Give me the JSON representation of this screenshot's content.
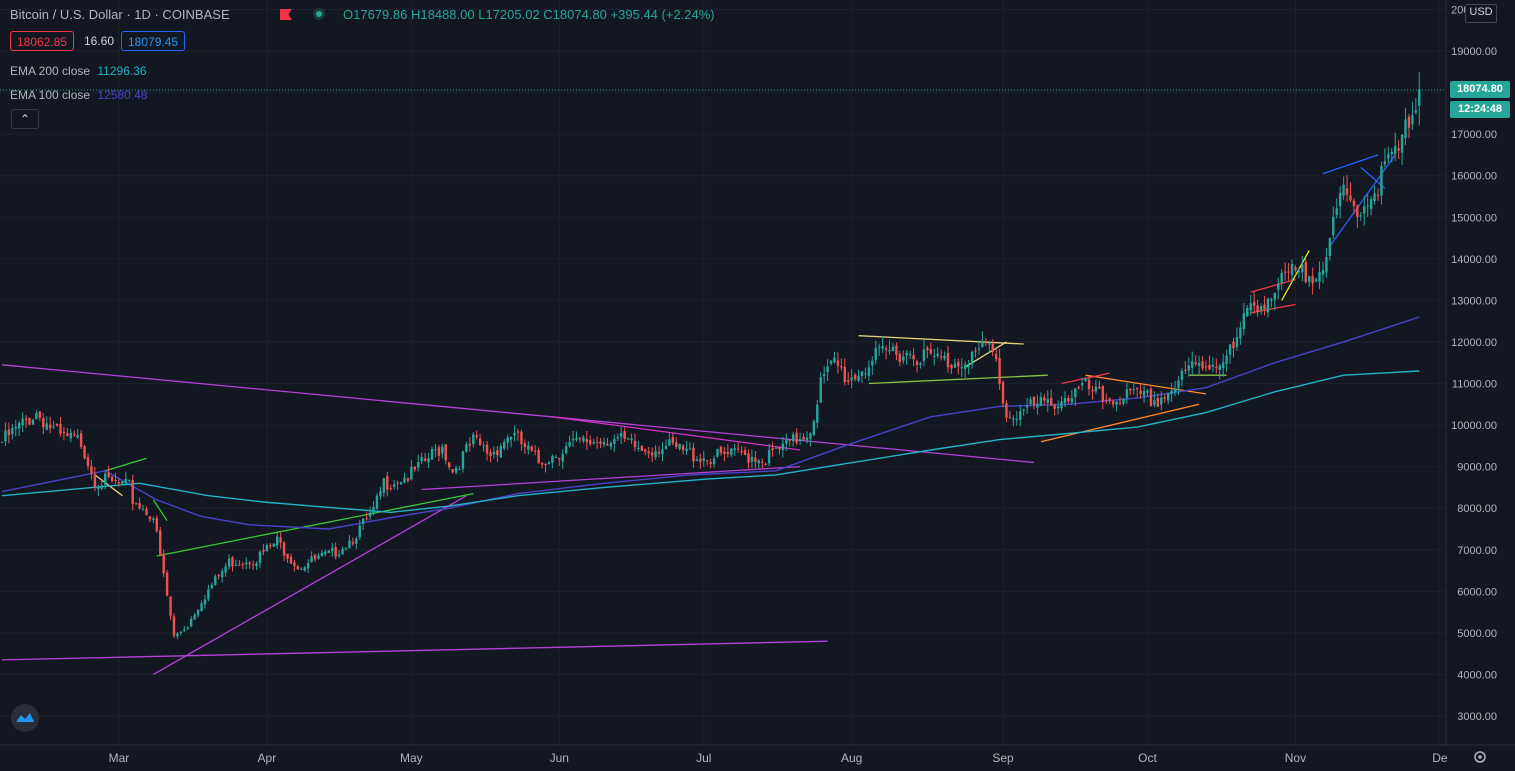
{
  "header": {
    "symbol": "Bitcoin / U.S. Dollar · 1D · COINBASE",
    "open": "O17679.86",
    "high": "H18488.00",
    "low": "L17205.02",
    "close": "C18074.80",
    "change": "+395.44 (+2.24%)"
  },
  "quote": {
    "bid": "18062.85",
    "spread": "16.60",
    "ask": "18079.45"
  },
  "indicators": [
    {
      "label": "EMA 200 close",
      "value": "11296.36",
      "color": "#22b3c6"
    },
    {
      "label": "EMA 100 close",
      "value": "12580.48",
      "color": "#4a43c8"
    }
  ],
  "price_axis": {
    "currency": "USD",
    "last_price": "18074.80",
    "countdown": "12:24:48"
  },
  "colors": {
    "up": "#26a69a",
    "down": "#ef5350",
    "background": "#131722",
    "grid": "#1e222d"
  },
  "chart_data": {
    "type": "candlestick",
    "x_ticks": [
      "Mar",
      "Apr",
      "May",
      "Jun",
      "Jul",
      "Aug",
      "Sep",
      "Oct",
      "Nov",
      "De"
    ],
    "y_ticks": [
      "3000.00",
      "4000.00",
      "5000.00",
      "6000.00",
      "7000.00",
      "8000.00",
      "9000.00",
      "10000.00",
      "11000.00",
      "12000.00",
      "13000.00",
      "14000.00",
      "15000.00",
      "16000.00",
      "17000.00",
      "18000.00",
      "19000.00",
      "20000.00"
    ],
    "ylim": [
      2400,
      20200
    ],
    "close_anchors": [
      [
        0,
        9600
      ],
      [
        10,
        10300
      ],
      [
        17,
        9700
      ],
      [
        23,
        9600
      ],
      [
        27,
        8700
      ],
      [
        37,
        8500
      ],
      [
        38,
        8200
      ],
      [
        44,
        7800
      ],
      [
        49,
        5400
      ],
      [
        50,
        4900
      ],
      [
        54,
        5200
      ],
      [
        58,
        5800
      ],
      [
        66,
        6700
      ],
      [
        74,
        6800
      ],
      [
        80,
        7200
      ],
      [
        86,
        6600
      ],
      [
        96,
        6900
      ],
      [
        102,
        7300
      ],
      [
        108,
        7900
      ],
      [
        111,
        8600
      ],
      [
        119,
        8800
      ],
      [
        124,
        9200
      ],
      [
        128,
        9500
      ],
      [
        131,
        8900
      ],
      [
        137,
        9600
      ],
      [
        142,
        9300
      ],
      [
        148,
        9800
      ],
      [
        156,
        9100
      ],
      [
        165,
        9500
      ],
      [
        177,
        9700
      ],
      [
        186,
        9400
      ],
      [
        192,
        9500
      ],
      [
        205,
        9200
      ],
      [
        215,
        9300
      ],
      [
        222,
        9200
      ],
      [
        230,
        9600
      ],
      [
        235,
        9900
      ],
      [
        238,
        11000
      ],
      [
        242,
        11500
      ],
      [
        246,
        11100
      ],
      [
        254,
        11600
      ],
      [
        259,
        11800
      ],
      [
        266,
        11700
      ],
      [
        276,
        11500
      ],
      [
        283,
        11700
      ],
      [
        287,
        11900
      ],
      [
        289,
        11500
      ],
      [
        292,
        10200
      ],
      [
        298,
        10400
      ],
      [
        304,
        10500
      ],
      [
        310,
        10700
      ],
      [
        315,
        10900
      ],
      [
        320,
        10600
      ],
      [
        326,
        10700
      ],
      [
        336,
        10600
      ],
      [
        342,
        11000
      ],
      [
        346,
        11400
      ],
      [
        352,
        11500
      ],
      [
        358,
        11800
      ],
      [
        363,
        12900
      ],
      [
        369,
        13100
      ],
      [
        374,
        13600
      ],
      [
        380,
        13600
      ],
      [
        385,
        14100
      ],
      [
        390,
        15600
      ],
      [
        393,
        15200
      ],
      [
        398,
        15500
      ],
      [
        403,
        16300
      ],
      [
        407,
        16700
      ],
      [
        410,
        17700
      ],
      [
        412,
        18074.8
      ]
    ],
    "ema_200": [
      [
        0,
        8300
      ],
      [
        40,
        8600
      ],
      [
        60,
        8300
      ],
      [
        76,
        8150
      ],
      [
        95,
        8020
      ],
      [
        113,
        7900
      ],
      [
        130,
        8050
      ],
      [
        150,
        8300
      ],
      [
        175,
        8500
      ],
      [
        205,
        8700
      ],
      [
        225,
        8800
      ],
      [
        240,
        9000
      ],
      [
        270,
        9400
      ],
      [
        290,
        9650
      ],
      [
        310,
        9800
      ],
      [
        330,
        9950
      ],
      [
        350,
        10300
      ],
      [
        370,
        10800
      ],
      [
        390,
        11200
      ],
      [
        412,
        11300
      ]
    ],
    "ema_100": [
      [
        0,
        8400
      ],
      [
        30,
        8900
      ],
      [
        45,
        8200
      ],
      [
        58,
        7800
      ],
      [
        72,
        7600
      ],
      [
        95,
        7500
      ],
      [
        115,
        7800
      ],
      [
        130,
        8000
      ],
      [
        150,
        8350
      ],
      [
        175,
        8600
      ],
      [
        200,
        8800
      ],
      [
        225,
        8900
      ],
      [
        245,
        9500
      ],
      [
        270,
        10200
      ],
      [
        290,
        10450
      ],
      [
        310,
        10500
      ],
      [
        330,
        10650
      ],
      [
        350,
        10900
      ],
      [
        370,
        11500
      ],
      [
        390,
        12000
      ],
      [
        412,
        12600
      ]
    ],
    "drawings": [
      {
        "color": "#b342d9",
        "points": [
          [
            0,
            11450
          ],
          [
            300,
            9100
          ]
        ]
      },
      {
        "color": "#b342d9",
        "points": [
          [
            0,
            4350
          ],
          [
            240,
            4800
          ]
        ]
      },
      {
        "color": "#b342d9",
        "points": [
          [
            44,
            4000
          ],
          [
            135,
            8300
          ]
        ]
      },
      {
        "color": "#b342d9",
        "points": [
          [
            122,
            8450
          ],
          [
            232,
            9000
          ]
        ]
      },
      {
        "color": "#d432c8",
        "points": [
          [
            160,
            10200
          ],
          [
            232,
            9400
          ]
        ]
      },
      {
        "color": "#38c93a",
        "points": [
          [
            45,
            6850
          ],
          [
            137,
            8350
          ]
        ]
      },
      {
        "color": "#e8d37a",
        "points": [
          [
            249,
            12150
          ],
          [
            297,
            11950
          ]
        ]
      },
      {
        "color": "#8bc34a",
        "points": [
          [
            252,
            11000
          ],
          [
            304,
            11200
          ]
        ]
      },
      {
        "color": "#e8d37a",
        "points": [
          [
            280,
            11400
          ],
          [
            292,
            12000
          ]
        ]
      },
      {
        "color": "#ff8a2a",
        "points": [
          [
            302,
            9600
          ],
          [
            348,
            10500
          ]
        ]
      },
      {
        "color": "#ff8a2a",
        "points": [
          [
            315,
            11200
          ],
          [
            350,
            10750
          ]
        ]
      },
      {
        "color": "#f23645",
        "points": [
          [
            308,
            11000
          ],
          [
            322,
            11250
          ]
        ]
      },
      {
        "color": "#8bc34a",
        "points": [
          [
            345,
            11200
          ],
          [
            356,
            11200
          ]
        ]
      },
      {
        "color": "#f23645",
        "points": [
          [
            363,
            13200
          ],
          [
            376,
            13500
          ]
        ]
      },
      {
        "color": "#f23645",
        "points": [
          [
            363,
            12700
          ],
          [
            376,
            12900
          ]
        ]
      },
      {
        "color": "#f0e020",
        "points": [
          [
            372,
            13000
          ],
          [
            380,
            14200
          ]
        ]
      },
      {
        "color": "#2962ff",
        "points": [
          [
            384,
            16050
          ],
          [
            400,
            16500
          ]
        ]
      },
      {
        "color": "#2962ff",
        "points": [
          [
            386,
            14300
          ],
          [
            405,
            16500
          ]
        ]
      },
      {
        "color": "#2962ff",
        "points": [
          [
            395,
            16200
          ],
          [
            402,
            15700
          ]
        ]
      },
      {
        "color": "#e8d37a",
        "points": [
          [
            27,
            8800
          ],
          [
            35,
            8300
          ]
        ]
      },
      {
        "color": "#38c93a",
        "points": [
          [
            30,
            8900
          ],
          [
            42,
            9200
          ]
        ]
      },
      {
        "color": "#38c93a",
        "points": [
          [
            44,
            8200
          ],
          [
            48,
            7700
          ]
        ]
      }
    ]
  }
}
